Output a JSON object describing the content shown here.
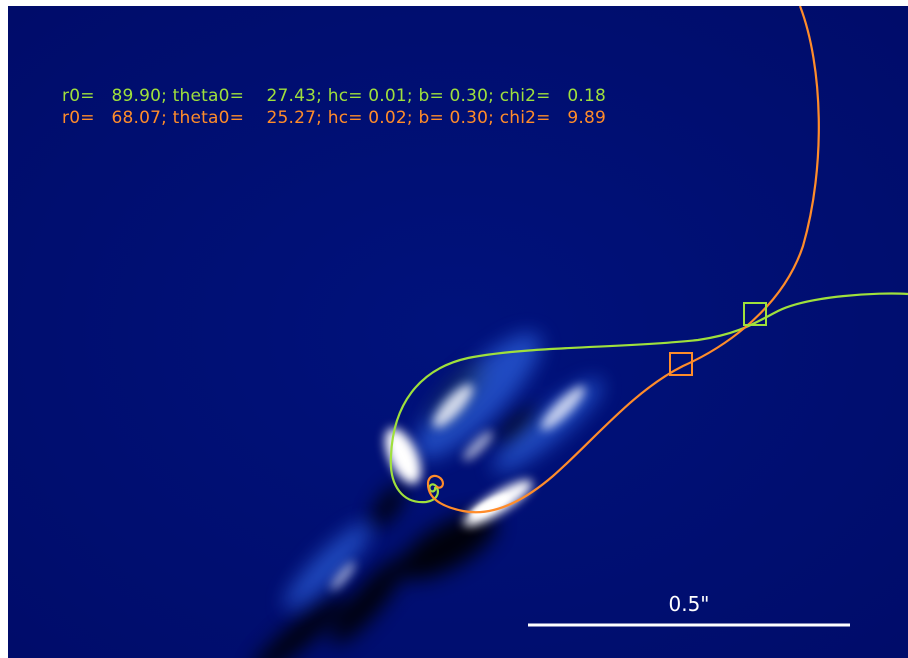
{
  "annotations": {
    "fit_green": {
      "text": "r0=   89.90; theta0=    27.43; hc= 0.01; b= 0.30; chi2=   0.18",
      "color": "#9fe03c"
    },
    "fit_orange": {
      "text": "r0=   68.07; theta0=    25.27; hc= 0.02; b= 0.30; chi2=   9.89",
      "color": "#ff8c2a"
    }
  },
  "scale_bar": {
    "label": "0.5\"",
    "color": "#ffffff"
  },
  "image": {
    "background": "#000f74",
    "emission_color": "#ffffff",
    "emission_glow": "#5a9dff"
  },
  "markers": {
    "green_square_color": "#9fe03c",
    "orange_square_color": "#ff8c2a"
  }
}
